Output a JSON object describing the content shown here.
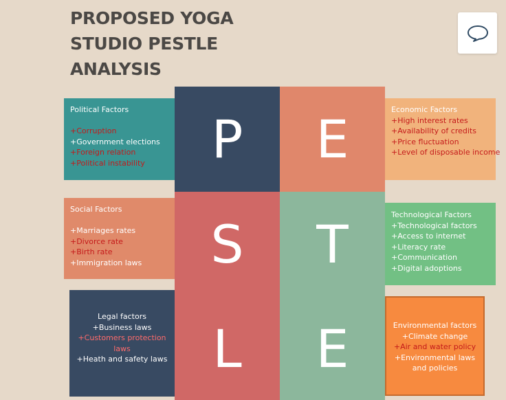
{
  "title": [
    "PROPOSED YOGA",
    "STUDIO PESTLE",
    "ANALYSIS"
  ],
  "comment_icon": "speech-bubble-icon",
  "letters": {
    "p": "P",
    "e1": "E",
    "s": "S",
    "t": "T",
    "l": "L",
    "e2": "E"
  },
  "colors": {
    "p": "#384a62",
    "e1": "#e0876b",
    "s": "#d06866",
    "t": "#8cb79c",
    "l": "#d06866",
    "e2": "#8cb79c"
  },
  "political": {
    "heading": "Political Factors",
    "items": [
      "+Corruption",
      "+Government elections",
      "+Foreign relation",
      "+Political instability"
    ]
  },
  "economic": {
    "heading": "Economic Factors",
    "items": [
      "+High interest rates",
      "+Availability of credits",
      "+Price fluctuation",
      "+Level of disposable income"
    ]
  },
  "social": {
    "heading": "Social Factors",
    "items": [
      "+Marriages rates",
      "+Divorce rate",
      "+Birth rate",
      "+Immigration laws"
    ]
  },
  "technological": {
    "heading": "Technological Factors",
    "items": [
      "+Technological factors",
      "+Access to internet",
      "+Literacy rate",
      "+Communication",
      "+Digital adoptions"
    ]
  },
  "legal": {
    "heading": "Legal factors",
    "items": [
      "+Business laws",
      "+Customers protection laws",
      "+Heath and safety laws"
    ]
  },
  "environmental": {
    "heading": "Environmental factors",
    "items": [
      "+Climate change",
      "+Air and water policy",
      "+Environmental laws and policies"
    ]
  }
}
